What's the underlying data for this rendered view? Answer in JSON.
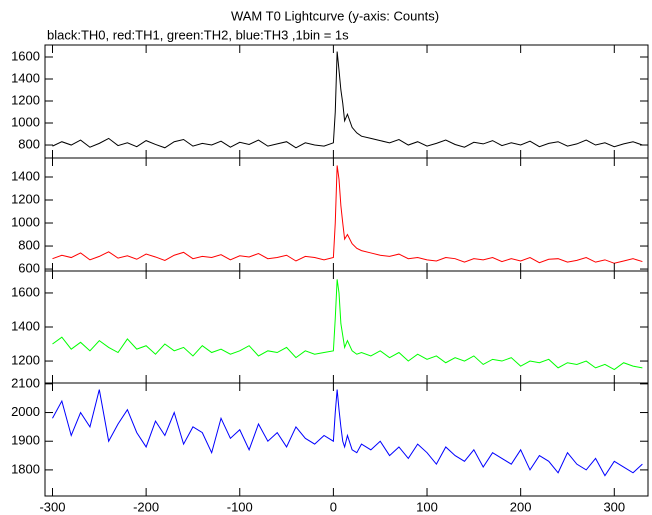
{
  "chart_data": [
    {
      "type": "line",
      "title": "WAM T0 Lightcurve (y-axis: Counts)",
      "subtitle": "black:TH0, red:TH1, green:TH2, blue:TH3 ,1bin = 1s",
      "xlim": [
        -308,
        336
      ],
      "ylim": [
        682,
        1709
      ],
      "yticks": [
        800,
        1000,
        1200,
        1400,
        1600
      ],
      "x": [
        -300,
        -290,
        -280,
        -270,
        -260,
        -250,
        -240,
        -230,
        -220,
        -210,
        -200,
        -190,
        -180,
        -170,
        -160,
        -150,
        -140,
        -130,
        -120,
        -110,
        -100,
        -90,
        -80,
        -70,
        -60,
        -50,
        -40,
        -30,
        -20,
        -10,
        0,
        2,
        4,
        6,
        8,
        10,
        12,
        15,
        20,
        25,
        30,
        40,
        50,
        60,
        70,
        80,
        90,
        100,
        110,
        120,
        130,
        140,
        150,
        160,
        170,
        180,
        190,
        200,
        210,
        220,
        230,
        240,
        250,
        260,
        270,
        280,
        290,
        300,
        310,
        320,
        330
      ],
      "series": [
        {
          "name": "TH0",
          "color": "#000000",
          "values": [
            790,
            830,
            800,
            845,
            780,
            815,
            860,
            795,
            820,
            785,
            840,
            805,
            775,
            830,
            850,
            790,
            815,
            800,
            835,
            780,
            825,
            805,
            845,
            790,
            810,
            830,
            775,
            820,
            800,
            790,
            820,
            1100,
            1650,
            1480,
            1300,
            1180,
            1020,
            1080,
            960,
            910,
            880,
            860,
            840,
            820,
            850,
            800,
            830,
            790,
            815,
            845,
            805,
            780,
            825,
            810,
            840,
            795,
            820,
            800,
            835,
            785,
            815,
            830,
            790,
            810,
            845,
            800,
            820,
            785,
            810,
            830,
            800
          ]
        }
      ]
    },
    {
      "type": "line",
      "xlim": [
        -308,
        336
      ],
      "ylim": [
        583,
        1565
      ],
      "yticks": [
        600,
        800,
        1000,
        1200,
        1400
      ],
      "x": [
        -300,
        -290,
        -280,
        -270,
        -260,
        -250,
        -240,
        -230,
        -220,
        -210,
        -200,
        -190,
        -180,
        -170,
        -160,
        -150,
        -140,
        -130,
        -120,
        -110,
        -100,
        -90,
        -80,
        -70,
        -60,
        -50,
        -40,
        -30,
        -20,
        -10,
        0,
        2,
        4,
        6,
        8,
        10,
        12,
        15,
        20,
        25,
        30,
        40,
        50,
        60,
        70,
        80,
        90,
        100,
        110,
        120,
        130,
        140,
        150,
        160,
        170,
        180,
        190,
        200,
        210,
        220,
        230,
        240,
        250,
        260,
        270,
        280,
        290,
        300,
        310,
        320,
        330
      ],
      "series": [
        {
          "name": "TH1",
          "color": "#ff0000",
          "values": [
            690,
            720,
            700,
            740,
            680,
            710,
            750,
            695,
            715,
            685,
            730,
            705,
            675,
            720,
            745,
            690,
            710,
            700,
            725,
            680,
            715,
            705,
            735,
            690,
            700,
            720,
            670,
            710,
            700,
            680,
            700,
            1000,
            1500,
            1380,
            1150,
            1000,
            860,
            900,
            820,
            780,
            760,
            740,
            720,
            710,
            730,
            690,
            700,
            680,
            670,
            700,
            690,
            660,
            690,
            680,
            700,
            665,
            690,
            670,
            700,
            655,
            685,
            690,
            660,
            675,
            700,
            660,
            680,
            650,
            670,
            690,
            665
          ]
        }
      ]
    },
    {
      "type": "line",
      "xlim": [
        -308,
        336
      ],
      "ylim": [
        1071,
        1729
      ],
      "yticks": [
        1200,
        1400,
        1600
      ],
      "x": [
        -300,
        -290,
        -280,
        -270,
        -260,
        -250,
        -240,
        -230,
        -220,
        -210,
        -200,
        -190,
        -180,
        -170,
        -160,
        -150,
        -140,
        -130,
        -120,
        -110,
        -100,
        -90,
        -80,
        -70,
        -60,
        -50,
        -40,
        -30,
        -20,
        -10,
        0,
        2,
        4,
        6,
        8,
        10,
        12,
        15,
        20,
        25,
        30,
        40,
        50,
        60,
        70,
        80,
        90,
        100,
        110,
        120,
        130,
        140,
        150,
        160,
        170,
        180,
        190,
        200,
        210,
        220,
        230,
        240,
        250,
        260,
        270,
        280,
        290,
        300,
        310,
        320,
        330
      ],
      "series": [
        {
          "name": "TH2",
          "color": "#00ff00",
          "values": [
            1300,
            1340,
            1270,
            1310,
            1260,
            1320,
            1280,
            1250,
            1330,
            1270,
            1290,
            1240,
            1300,
            1260,
            1280,
            1230,
            1290,
            1250,
            1270,
            1240,
            1260,
            1290,
            1230,
            1260,
            1250,
            1280,
            1220,
            1260,
            1240,
            1250,
            1260,
            1450,
            1680,
            1600,
            1420,
            1350,
            1280,
            1320,
            1260,
            1240,
            1250,
            1230,
            1260,
            1220,
            1250,
            1200,
            1240,
            1210,
            1230,
            1190,
            1220,
            1200,
            1230,
            1180,
            1210,
            1200,
            1220,
            1170,
            1200,
            1190,
            1210,
            1160,
            1190,
            1180,
            1200,
            1160,
            1180,
            1150,
            1190,
            1170,
            1160
          ]
        }
      ]
    },
    {
      "type": "line",
      "xlim": [
        -308,
        336
      ],
      "ylim": [
        1709,
        2103
      ],
      "yticks": [
        1800,
        1900,
        2000,
        2100
      ],
      "xticks": [
        -300,
        -200,
        -100,
        0,
        100,
        200,
        300
      ],
      "x": [
        -300,
        -290,
        -280,
        -270,
        -260,
        -250,
        -240,
        -230,
        -220,
        -210,
        -200,
        -190,
        -180,
        -170,
        -160,
        -150,
        -140,
        -130,
        -120,
        -110,
        -100,
        -90,
        -80,
        -70,
        -60,
        -50,
        -40,
        -30,
        -20,
        -10,
        0,
        2,
        4,
        6,
        8,
        10,
        12,
        15,
        20,
        25,
        30,
        40,
        50,
        60,
        70,
        80,
        90,
        100,
        110,
        120,
        130,
        140,
        150,
        160,
        170,
        180,
        190,
        200,
        210,
        220,
        230,
        240,
        250,
        260,
        270,
        280,
        290,
        300,
        310,
        320,
        330
      ],
      "series": [
        {
          "name": "TH3",
          "color": "#0000ff",
          "values": [
            1980,
            2040,
            1920,
            2000,
            1950,
            2080,
            1900,
            1960,
            2010,
            1930,
            1880,
            1970,
            1920,
            2000,
            1890,
            1950,
            1930,
            1860,
            1980,
            1910,
            1940,
            1870,
            1960,
            1900,
            1930,
            1880,
            1950,
            1910,
            1890,
            1920,
            1900,
            2000,
            2080,
            2010,
            1950,
            1900,
            1880,
            1920,
            1870,
            1860,
            1890,
            1870,
            1900,
            1850,
            1880,
            1840,
            1890,
            1860,
            1820,
            1880,
            1850,
            1830,
            1870,
            1810,
            1860,
            1840,
            1820,
            1870,
            1800,
            1850,
            1830,
            1790,
            1860,
            1820,
            1800,
            1840,
            1780,
            1830,
            1810,
            1790,
            1820
          ]
        }
      ]
    }
  ]
}
